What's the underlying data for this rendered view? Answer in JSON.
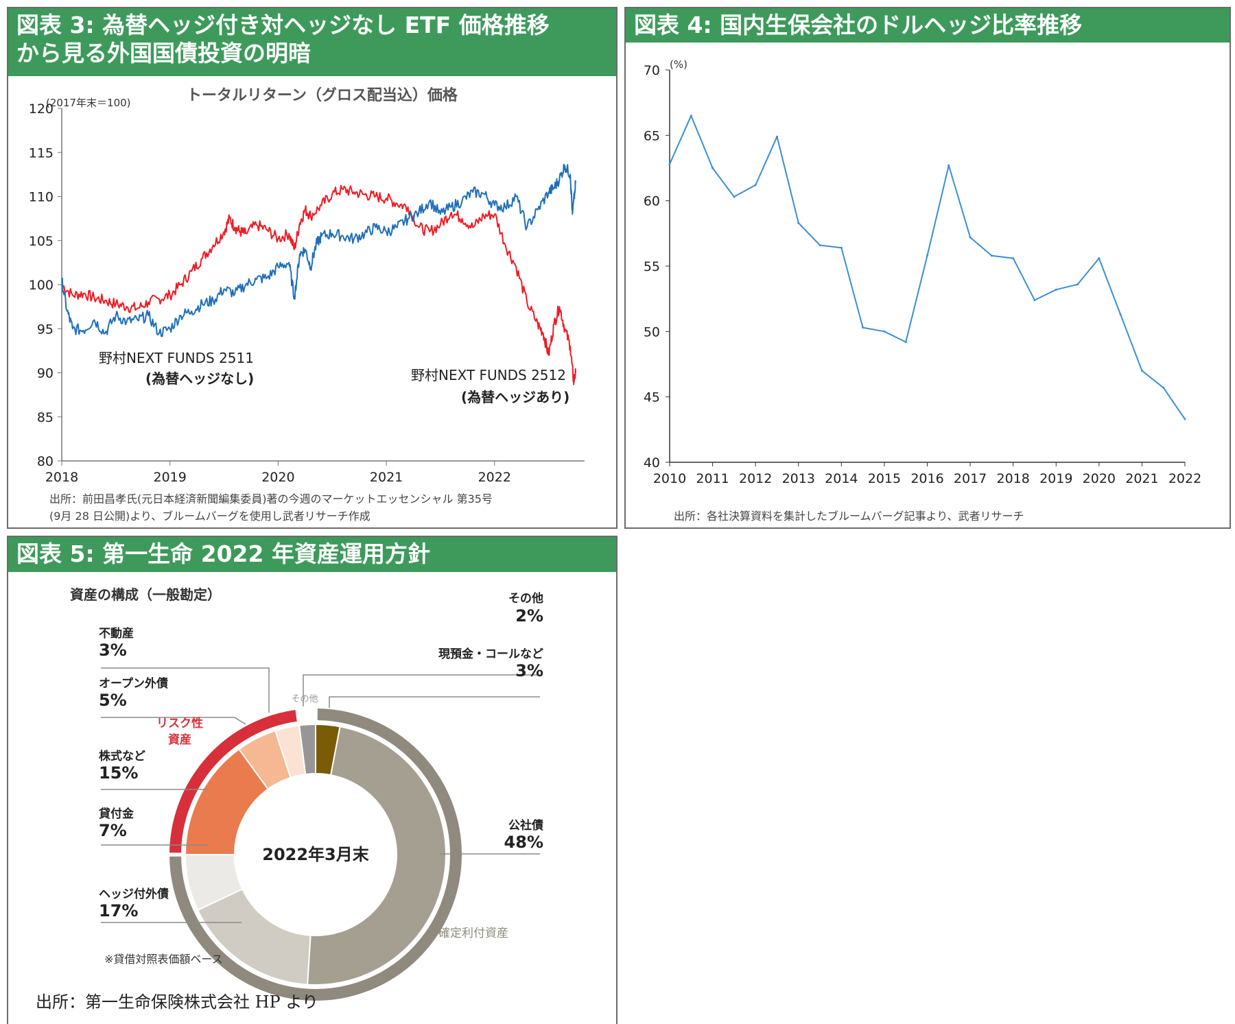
{
  "colors": {
    "header_green": "#3d9a5b",
    "red": "#ee1c25",
    "blue": "#1f6fba",
    "line4": "#3a8ed6"
  },
  "chart3": {
    "title_line1": "図表 3: 為替ヘッジ付き対ヘッジなし ETF 価格推移",
    "title_line2": "から見る外国国債投資の明暗",
    "subtitle": "トータルリターン（グロス配当込）価格",
    "unit": "(2017年末＝100)",
    "label_a_line1": "野村NEXT FUNDS 2511",
    "label_a_line2": "(為替ヘッジなし)",
    "label_b_line1": "野村NEXT FUNDS 2512",
    "label_b_line2": "(為替ヘッジあり)",
    "source_line1": "出所：前田昌孝氏(元日本経済新聞編集委員)著の今週のマーケットエッセンシャル 第35号",
    "source_line2": "(9月 28 日公開)より、ブルームバーグを使用し武者リサーチ作成"
  },
  "chart4": {
    "title": "図表 4: 国内生保会社のドルヘッジ比率推移",
    "unit": "(%)",
    "source": "出所：各社決算資料を集計したブルームバーグ記事より、武者リサーチ"
  },
  "chart5": {
    "title": "図表 5: 第一生命 2022 年資産運用方針",
    "subtitle": "資産の構成（一般勘定）",
    "center": "2022年3月末",
    "risk_line1": "リスク性",
    "risk_line2": "資産",
    "fixed_label": "確定利付資産",
    "other_small": "その他",
    "note": "※貸借対照表価額ベース",
    "source": "出所：第一生命保険株式会社 HP より"
  },
  "chart_data": [
    {
      "type": "line",
      "title": "トータルリターン（グロス配当込）価格",
      "ylabel": "(2017年末＝100)",
      "ylim": [
        80,
        120
      ],
      "yticks": [
        "80",
        "85",
        "90",
        "95",
        "100",
        "105",
        "110",
        "115",
        "120"
      ],
      "xticks": [
        "2018",
        "2019",
        "2020",
        "2021",
        "2022"
      ],
      "xlim": [
        2018.0,
        2022.75
      ],
      "grid": false,
      "series": [
        {
          "name": "野村NEXT FUNDS 2512 (為替ヘッジあり)",
          "color": "#ee1c25",
          "x": [
            2018.0,
            2018.1,
            2018.2,
            2018.3,
            2018.4,
            2018.5,
            2018.6,
            2018.7,
            2018.8,
            2018.9,
            2019.0,
            2019.1,
            2019.2,
            2019.3,
            2019.4,
            2019.5,
            2019.55,
            2019.6,
            2019.65,
            2019.7,
            2019.8,
            2019.9,
            2020.0,
            2020.1,
            2020.15,
            2020.2,
            2020.25,
            2020.3,
            2020.4,
            2020.5,
            2020.6,
            2020.7,
            2020.8,
            2020.9,
            2021.0,
            2021.1,
            2021.2,
            2021.3,
            2021.4,
            2021.5,
            2021.6,
            2021.7,
            2021.8,
            2021.9,
            2022.0,
            2022.1,
            2022.2,
            2022.3,
            2022.4,
            2022.45,
            2022.5,
            2022.55,
            2022.6,
            2022.65,
            2022.7,
            2022.73,
            2022.75
          ],
          "values": [
            100.0,
            98.8,
            99.0,
            98.5,
            98.2,
            97.8,
            97.5,
            97.3,
            98.0,
            98.4,
            98.8,
            100.0,
            101.5,
            103.0,
            104.5,
            106.0,
            107.5,
            106.5,
            106.0,
            105.8,
            106.8,
            106.2,
            105.2,
            105.8,
            104.0,
            107.0,
            108.5,
            107.8,
            109.0,
            110.3,
            110.8,
            110.5,
            110.2,
            110.0,
            109.8,
            109.2,
            108.8,
            106.5,
            106.0,
            106.8,
            108.2,
            107.5,
            106.5,
            107.8,
            108.0,
            104.5,
            102.0,
            98.0,
            95.5,
            94.5,
            92.0,
            95.5,
            97.5,
            95.0,
            93.0,
            89.0,
            90.0
          ]
        },
        {
          "name": "野村NEXT FUNDS 2511 (為替ヘッジなし)",
          "color": "#1f6fba",
          "x": [
            2018.0,
            2018.05,
            2018.1,
            2018.2,
            2018.3,
            2018.4,
            2018.5,
            2018.6,
            2018.7,
            2018.8,
            2018.9,
            2019.0,
            2019.1,
            2019.2,
            2019.3,
            2019.4,
            2019.5,
            2019.6,
            2019.7,
            2019.8,
            2019.9,
            2020.0,
            2020.1,
            2020.15,
            2020.2,
            2020.25,
            2020.3,
            2020.35,
            2020.4,
            2020.5,
            2020.6,
            2020.7,
            2020.8,
            2020.9,
            2021.0,
            2021.1,
            2021.2,
            2021.3,
            2021.4,
            2021.5,
            2021.6,
            2021.7,
            2021.8,
            2021.9,
            2022.0,
            2022.1,
            2022.2,
            2022.3,
            2022.4,
            2022.5,
            2022.55,
            2022.6,
            2022.65,
            2022.7,
            2022.72,
            2022.75
          ],
          "values": [
            100.5,
            97.0,
            95.0,
            94.8,
            96.0,
            94.5,
            96.5,
            95.8,
            96.0,
            96.5,
            94.5,
            95.0,
            96.5,
            97.0,
            97.8,
            98.2,
            99.5,
            99.0,
            100.0,
            100.6,
            100.8,
            102.0,
            102.5,
            98.5,
            103.5,
            104.0,
            102.0,
            104.5,
            105.5,
            105.8,
            105.5,
            105.2,
            105.8,
            106.5,
            106.0,
            106.5,
            107.5,
            108.2,
            109.5,
            108.0,
            108.8,
            109.5,
            110.5,
            110.3,
            109.0,
            108.8,
            110.0,
            106.5,
            108.5,
            110.5,
            111.0,
            112.0,
            113.5,
            112.5,
            108.0,
            111.5
          ]
        }
      ]
    },
    {
      "type": "line",
      "ylabel": "(%)",
      "ylim": [
        40,
        70
      ],
      "yticks": [
        "40",
        "45",
        "50",
        "55",
        "60",
        "65",
        "70"
      ],
      "xticks": [
        "2010",
        "2011",
        "2012",
        "2013",
        "2014",
        "2015",
        "2016",
        "2017",
        "2018",
        "2019",
        "2020",
        "2021",
        "2022"
      ],
      "xlim": [
        2010,
        2022
      ],
      "grid": false,
      "series": [
        {
          "color": "#3a8ed6",
          "x": [
            2010.0,
            2010.5,
            2011.0,
            2011.5,
            2012.0,
            2012.5,
            2013.0,
            2013.5,
            2014.0,
            2014.5,
            2015.0,
            2015.5,
            2016.0,
            2016.5,
            2017.0,
            2017.5,
            2018.0,
            2018.5,
            2019.0,
            2019.5,
            2020.0,
            2020.5,
            2021.0,
            2021.5,
            2022.0
          ],
          "values": [
            62.8,
            66.5,
            62.5,
            60.3,
            61.2,
            64.9,
            58.3,
            56.6,
            56.4,
            50.3,
            50.0,
            49.2,
            55.8,
            62.7,
            57.2,
            55.8,
            55.6,
            52.4,
            53.2,
            53.6,
            55.6,
            51.3,
            47.0,
            45.7,
            43.3
          ]
        }
      ]
    },
    {
      "type": "pie",
      "title": "資産の構成（一般勘定）",
      "center_label": "2022年3月末",
      "slices": [
        {
          "label": "現預金・コールなど",
          "value": 3,
          "value_label": "3%",
          "color": "#7a5c06"
        },
        {
          "label": "公社債",
          "value": 48,
          "value_label": "48%",
          "color": "#a59f91"
        },
        {
          "label": "ヘッジ付外債",
          "value": 17,
          "value_label": "17%",
          "color": "#d0ccc3"
        },
        {
          "label": "貸付金",
          "value": 7,
          "value_label": "7%",
          "color": "#ebeae6"
        },
        {
          "label": "株式など",
          "value": 15,
          "value_label": "15%",
          "color": "#ea7b4e"
        },
        {
          "label": "オープン外債",
          "value": 5,
          "value_label": "5%",
          "color": "#f5b893"
        },
        {
          "label": "不動産",
          "value": 3,
          "value_label": "3%",
          "color": "#fbe2d2"
        },
        {
          "label": "その他",
          "value": 2,
          "value_label": "2%",
          "color": "#969696"
        }
      ],
      "outer_rings": [
        {
          "label": "確定利付資産",
          "color": "#8f8a7d"
        },
        {
          "label": "リスク性資産",
          "color": "#d7303b"
        }
      ]
    }
  ]
}
